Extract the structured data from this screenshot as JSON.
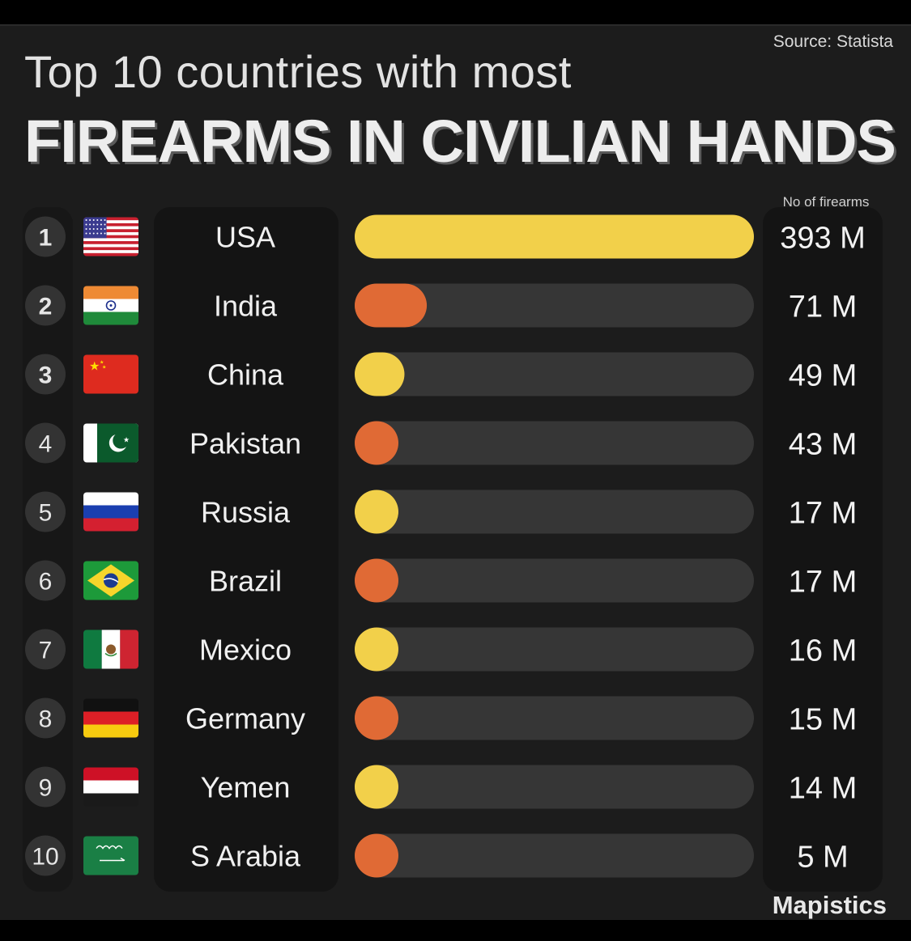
{
  "source": "Source: Statista",
  "title_line1": "Top 10 countries with most",
  "title_line2": "FIREARMS IN CIVILIAN HANDS",
  "value_header": "No of firearms",
  "brand": "Mapistics",
  "colors": {
    "yellow": "#f2d04a",
    "orange": "#e06a35",
    "track": "#363636",
    "panel": "#141414",
    "rank_bg": "#333333"
  },
  "chart_data": {
    "type": "bar",
    "orientation": "horizontal",
    "unit": "M",
    "xlim": [
      0,
      393
    ],
    "rows": [
      {
        "rank": "1",
        "country": "USA",
        "flag": "usa-flag",
        "value": 393,
        "label": "393 M",
        "color": "yellow"
      },
      {
        "rank": "2",
        "country": "India",
        "flag": "india-flag",
        "value": 71,
        "label": "71 M",
        "color": "orange"
      },
      {
        "rank": "3",
        "country": "China",
        "flag": "china-flag",
        "value": 49,
        "label": "49 M",
        "color": "yellow"
      },
      {
        "rank": "4",
        "country": "Pakistan",
        "flag": "pakistan-flag",
        "value": 43,
        "label": "43 M",
        "color": "orange"
      },
      {
        "rank": "5",
        "country": "Russia",
        "flag": "russia-flag",
        "value": 17,
        "label": "17 M",
        "color": "yellow"
      },
      {
        "rank": "6",
        "country": "Brazil",
        "flag": "brazil-flag",
        "value": 17,
        "label": "17 M",
        "color": "orange"
      },
      {
        "rank": "7",
        "country": "Mexico",
        "flag": "mexico-flag",
        "value": 16,
        "label": "16 M",
        "color": "yellow"
      },
      {
        "rank": "8",
        "country": "Germany",
        "flag": "germany-flag",
        "value": 15,
        "label": "15 M",
        "color": "orange"
      },
      {
        "rank": "9",
        "country": "Yemen",
        "flag": "yemen-flag",
        "value": 14,
        "label": "14 M",
        "color": "yellow"
      },
      {
        "rank": "10",
        "country": "S Arabia",
        "flag": "saudi-arabia-flag",
        "value": 5,
        "label": "5 M",
        "color": "orange"
      }
    ]
  }
}
